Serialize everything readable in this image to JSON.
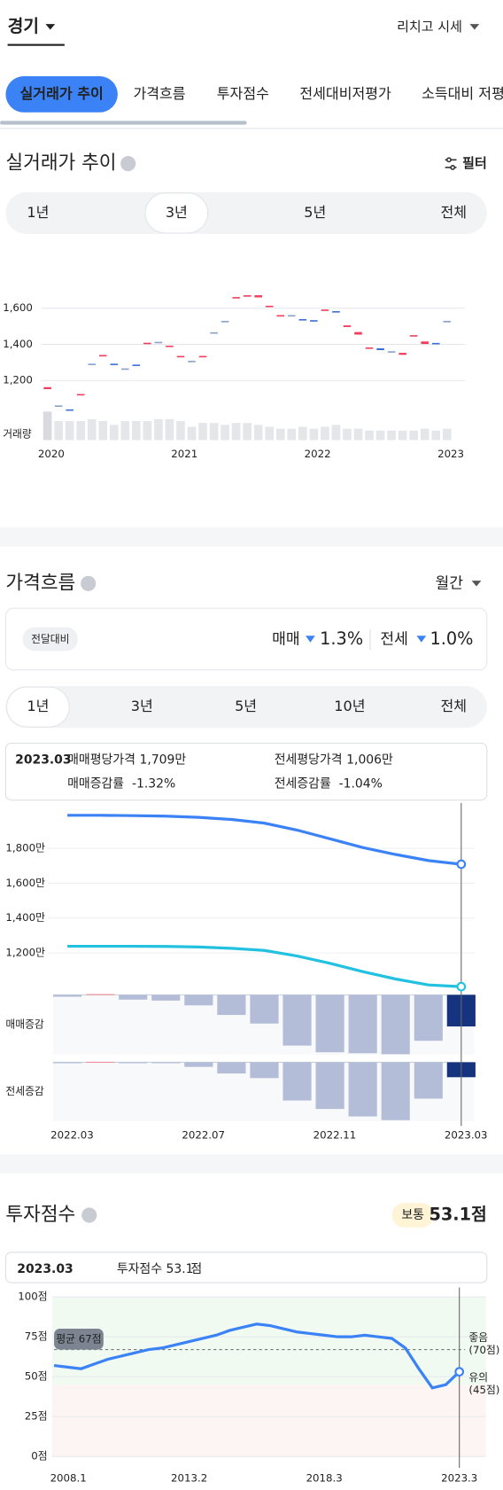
{
  "header": {
    "region": "경기",
    "link": "리치고 시세"
  },
  "tabs": [
    "실거래가 추이",
    "가격흐름",
    "투자점수",
    "전세대비저평가",
    "소득대비 저평"
  ],
  "trade": {
    "title": "실거래가 추이",
    "filter": "필터",
    "periods": [
      "1년",
      "3년",
      "5년",
      "전체"
    ],
    "selected_period": 1,
    "chart": {
      "type": "candlestick",
      "categories": [
        "2020",
        null,
        null,
        null,
        null,
        null,
        null,
        null,
        null,
        null,
        null,
        null,
        "2021",
        null,
        null,
        null,
        null,
        null,
        null,
        null,
        null,
        null,
        null,
        null,
        "2022",
        null,
        null,
        null,
        null,
        null,
        null,
        null,
        null,
        null,
        null,
        null,
        "2023"
      ],
      "open": [
        1152,
        1058,
        1036,
        1116,
        1289,
        1332,
        1289,
        1263,
        1284,
        1400,
        1410,
        1384,
        1326,
        1305,
        1327,
        1463,
        1526,
        1652,
        1664,
        1660,
        1606,
        1554,
        1558,
        1540,
        1534,
        1584,
        1584,
        1496,
        1454,
        1374,
        1378,
        1358,
        1342,
        1440,
        1402,
        1408,
        1526
      ],
      "close": [
        1163,
        1058,
        1032,
        1121,
        1289,
        1337,
        1284,
        1263,
        1279,
        1405,
        1410,
        1389,
        1332,
        1305,
        1332,
        1463,
        1526,
        1658,
        1668,
        1672,
        1610,
        1558,
        1558,
        1532,
        1526,
        1589,
        1576,
        1505,
        1468,
        1379,
        1368,
        1358,
        1353,
        1447,
        1416,
        1400,
        1526
      ],
      "volume": [
        30,
        20,
        20,
        20,
        22,
        20,
        16,
        20,
        20,
        20,
        22,
        22,
        20,
        14,
        18,
        18,
        16,
        18,
        18,
        16,
        14,
        12,
        12,
        14,
        12,
        14,
        16,
        12,
        12,
        10,
        10,
        10,
        10,
        10,
        12,
        10,
        12
      ],
      "volume_label": "거래량",
      "volume_lim": [
        0,
        32
      ],
      "ylim": [
        870,
        1780
      ],
      "yticks": [
        {
          "value": 1200,
          "label": "1,200"
        },
        {
          "value": 1400,
          "label": "1,400"
        },
        {
          "value": 1600,
          "label": "1,600"
        }
      ],
      "up_color": "#f03e5e",
      "down_color": "#3b6fd8",
      "grid": true
    }
  },
  "flow": {
    "title": "가격흐름",
    "interval": "월간",
    "compare_label": "전달대비",
    "changes": [
      {
        "label": "매매",
        "value": -1.3,
        "value_label": "1.3%"
      },
      {
        "label": "전세",
        "value": -1.0,
        "value_label": "1.0%"
      }
    ],
    "periods": [
      "1년",
      "3년",
      "5년",
      "10년",
      "전체"
    ],
    "selected_period": 0,
    "tooltip": {
      "date": "2023.03",
      "sale_price_label": "매매평당가격",
      "sale_price": "1,709만",
      "rent_price_label": "전세평당가격",
      "rent_price": "1,006만",
      "sale_change_label": "매매증감률",
      "sale_change": "-1.32%",
      "rent_change_label": "전세증감률",
      "rent_change": "-1.04%"
    },
    "chart": {
      "type": "line",
      "categories": [
        "2022.03",
        null,
        null,
        null,
        "2022.07",
        null,
        null,
        null,
        "2022.11",
        null,
        null,
        null,
        "2023.03"
      ],
      "series": [
        {
          "name": "매매",
          "color": "#3b82f6",
          "values": [
            1990,
            1990,
            1988,
            1985,
            1978,
            1966,
            1945,
            1905,
            1855,
            1805,
            1765,
            1730,
            1709
          ]
        },
        {
          "name": "전세",
          "color": "#22c1e0",
          "values": [
            1238,
            1238,
            1238,
            1237,
            1234,
            1226,
            1214,
            1182,
            1140,
            1092,
            1050,
            1016,
            1006
          ]
        }
      ],
      "ylim": [
        1000,
        2050
      ],
      "yticks": [
        {
          "value": 1200,
          "label": "1,200만"
        },
        {
          "value": 1400,
          "label": "1,400만"
        },
        {
          "value": 1600,
          "label": "1,600만"
        },
        {
          "value": 1800,
          "label": "1,800만"
        }
      ],
      "selected_index": 12,
      "bars": [
        {
          "name": "매매증감",
          "ylim": [
            -2.5,
            0
          ],
          "values": [
            -0.08,
            0.03,
            -0.2,
            -0.24,
            -0.44,
            -0.84,
            -1.2,
            -2.12,
            -2.4,
            -2.44,
            -2.48,
            -1.92,
            -1.32
          ]
        },
        {
          "name": "전세증감",
          "ylim": [
            -4.1,
            0
          ],
          "values": [
            -0.03,
            0.03,
            0,
            0,
            -0.32,
            -0.78,
            -1.1,
            -2.66,
            -3.25,
            -3.77,
            -4.03,
            -2.53,
            -1.04
          ]
        }
      ],
      "bar_color": "#b3bdd8",
      "selected_bar_color": "#15337e",
      "positive_bar_color": "#f28b9a",
      "grid": true
    }
  },
  "score": {
    "title": "투자점수",
    "grade": "보통",
    "score_label": "53.1점",
    "tooltip": {
      "date": "2023.03",
      "label": "투자점수",
      "value": "53.1",
      "unit": "점"
    },
    "chart": {
      "type": "line",
      "categories": [
        "2008.1",
        null,
        null,
        null,
        null,
        null,
        null,
        null,
        null,
        null,
        "2013.2",
        null,
        null,
        null,
        null,
        null,
        null,
        null,
        null,
        null,
        "2018.3",
        null,
        null,
        null,
        null,
        null,
        null,
        null,
        null,
        null,
        "2023.3"
      ],
      "values": [
        57,
        56,
        55,
        58,
        61,
        63,
        65,
        67,
        68,
        70,
        72,
        74,
        76,
        79,
        81,
        83,
        82,
        80,
        78,
        77,
        76,
        75,
        75,
        76,
        75,
        74,
        68,
        55,
        43,
        45,
        53.1
      ],
      "color": "#3b82f6",
      "ylim": [
        0,
        100
      ],
      "yticks": [
        {
          "value": 0,
          "label": "0점"
        },
        {
          "value": 25,
          "label": "25점"
        },
        {
          "value": 50,
          "label": "50점"
        },
        {
          "value": 75,
          "label": "75점"
        },
        {
          "value": 100,
          "label": "100점"
        }
      ],
      "average": {
        "value": 67,
        "label": "평균 67점"
      },
      "good": {
        "value": 70,
        "label": "좋음",
        "value_label": "(70점)"
      },
      "caution": {
        "value": 45,
        "label": "유의",
        "value_label": "(45점)"
      },
      "grid": true
    }
  }
}
